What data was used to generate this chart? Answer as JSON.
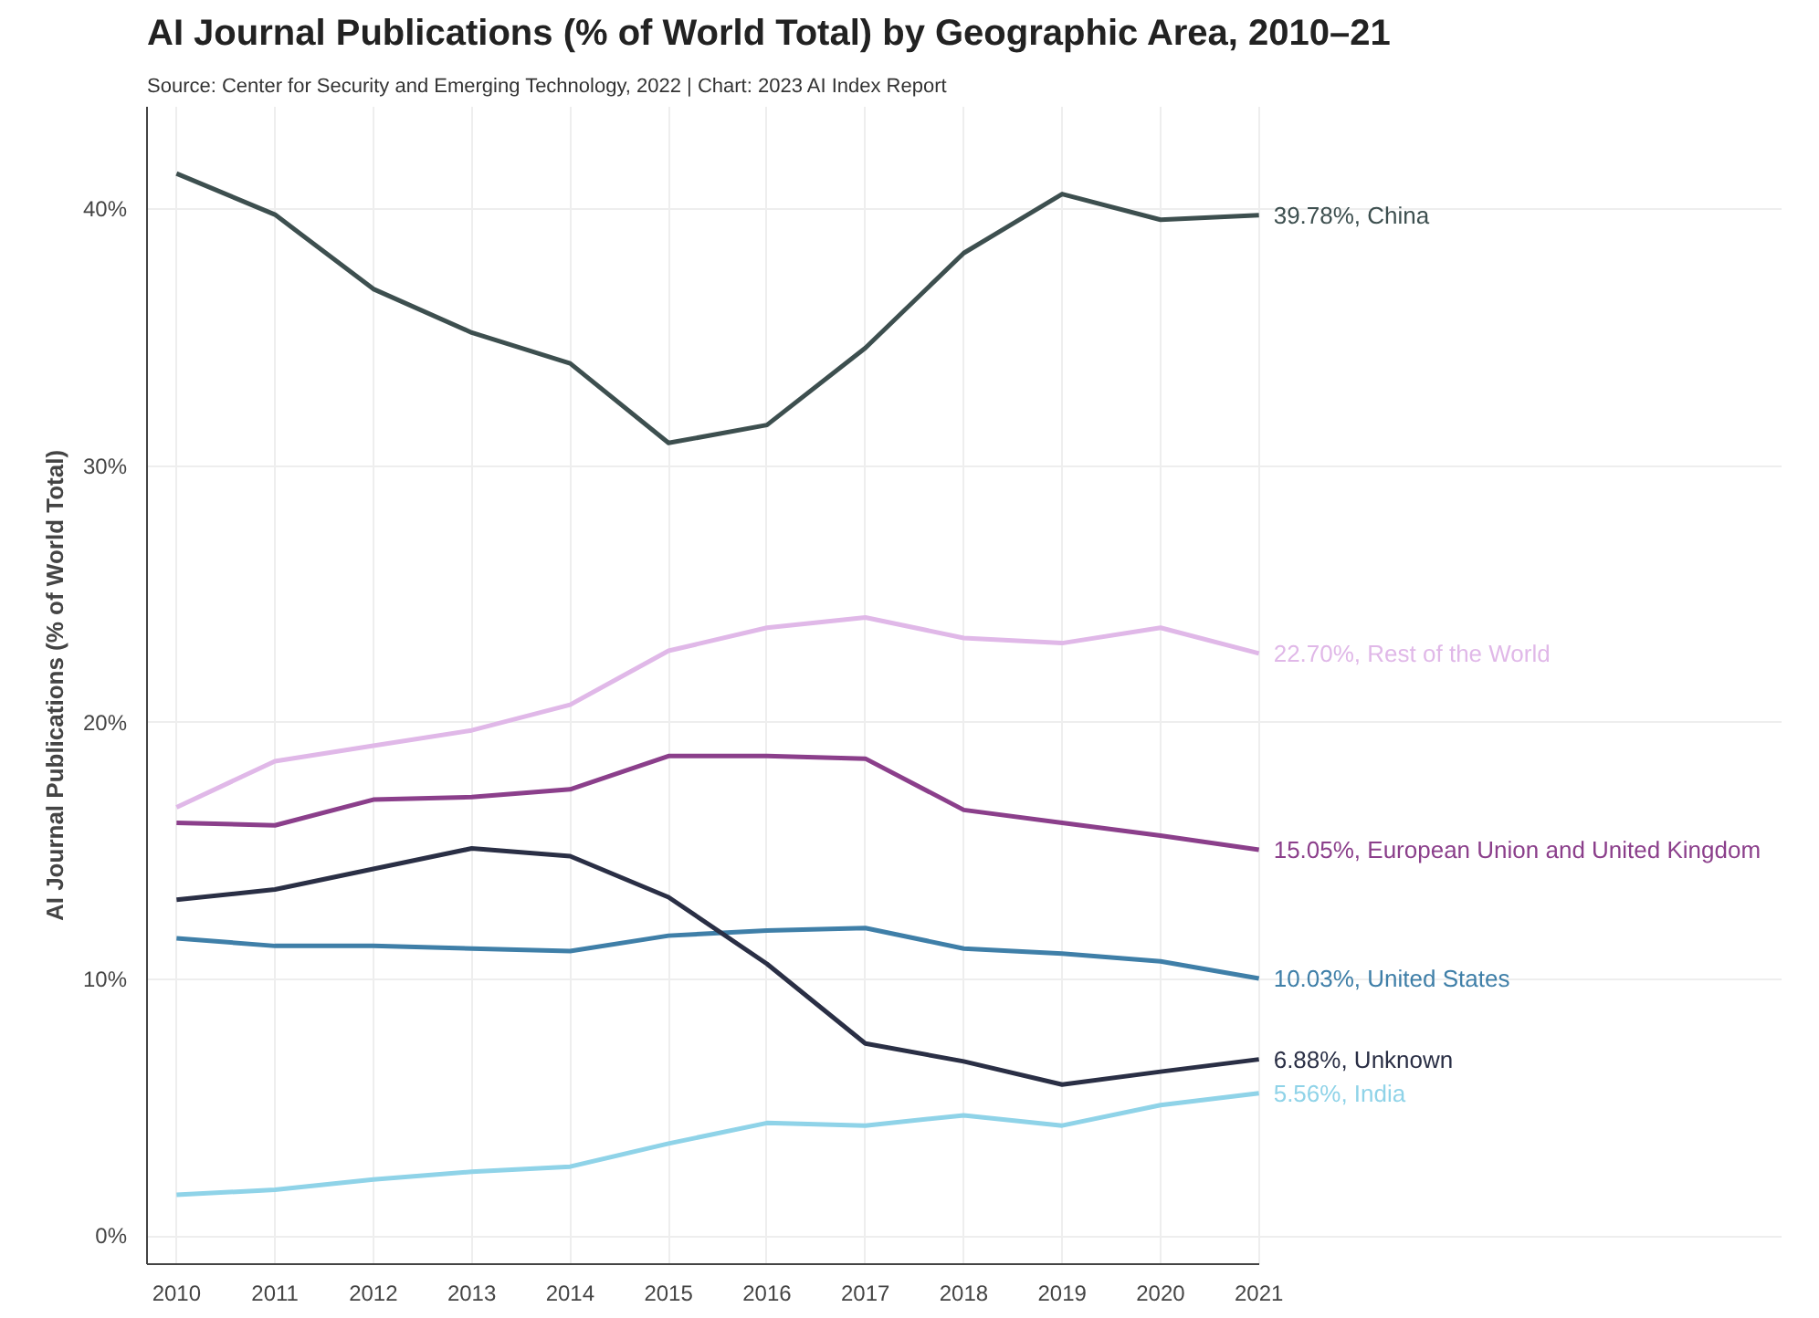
{
  "chart_data": {
    "type": "line",
    "title": "AI Journal Publications (% of World Total) by Geographic Area, 2010–21",
    "subtitle": "Source: Center for Security and Emerging Technology, 2022 | Chart: 2023 AI Index Report",
    "ylabel": "AI Journal Publications (% of World Total)",
    "x": [
      2010,
      2011,
      2012,
      2013,
      2014,
      2015,
      2016,
      2017,
      2018,
      2019,
      2020,
      2021
    ],
    "xlim": [
      2009.7,
      2021
    ],
    "xticks": [
      2010,
      2011,
      2012,
      2013,
      2014,
      2015,
      2016,
      2017,
      2018,
      2019,
      2020,
      2021
    ],
    "ylim": [
      -1.1,
      44
    ],
    "yticks": [
      {
        "value": 0,
        "label": "0%"
      },
      {
        "value": 10,
        "label": "10%"
      },
      {
        "value": 20,
        "label": "20%"
      },
      {
        "value": 30,
        "label": "30%"
      },
      {
        "value": 40,
        "label": "40%"
      }
    ],
    "grid": true,
    "legend": false,
    "marker": "none",
    "line_style": "solid",
    "series": [
      {
        "name": "China",
        "color": "#3d4f4f",
        "values": [
          41.4,
          39.8,
          36.9,
          35.2,
          34.0,
          30.9,
          31.6,
          34.6,
          38.3,
          40.6,
          39.6,
          39.78
        ],
        "value_labels": [
          null,
          null,
          null,
          null,
          null,
          null,
          null,
          null,
          null,
          null,
          null,
          "39.78%,"
        ]
      },
      {
        "name": "Rest of the World",
        "color": "#e0b8e8",
        "values": [
          16.7,
          18.5,
          19.1,
          19.7,
          20.7,
          22.8,
          23.7,
          24.1,
          23.3,
          23.1,
          23.7,
          22.7
        ],
        "value_labels": [
          null,
          null,
          null,
          null,
          null,
          null,
          null,
          null,
          null,
          null,
          null,
          "22.70%,"
        ]
      },
      {
        "name": "European Union and United Kingdom",
        "color": "#8b3f8b",
        "values": [
          16.1,
          16.0,
          17.0,
          17.1,
          17.4,
          18.7,
          18.7,
          18.6,
          16.6,
          16.1,
          15.6,
          15.05
        ],
        "value_labels": [
          null,
          null,
          null,
          null,
          null,
          null,
          null,
          null,
          null,
          null,
          null,
          "15.05%,"
        ]
      },
      {
        "name": "United States",
        "color": "#3f7fa8",
        "values": [
          11.6,
          11.3,
          11.3,
          11.2,
          11.1,
          11.7,
          11.9,
          12.0,
          11.2,
          11.0,
          10.7,
          10.03
        ],
        "value_labels": [
          null,
          null,
          null,
          null,
          null,
          null,
          null,
          null,
          null,
          null,
          null,
          "10.03%,"
        ]
      },
      {
        "name": "Unknown",
        "color": "#2a2f45",
        "values": [
          13.1,
          13.5,
          14.3,
          15.1,
          14.8,
          13.2,
          10.6,
          7.5,
          6.8,
          5.9,
          6.4,
          6.88
        ],
        "value_labels": [
          null,
          null,
          null,
          null,
          null,
          null,
          null,
          null,
          null,
          null,
          null,
          "6.88%,"
        ]
      },
      {
        "name": "India",
        "color": "#8fd3e8",
        "values": [
          1.6,
          1.8,
          2.2,
          2.5,
          2.7,
          3.6,
          4.4,
          4.3,
          4.7,
          4.3,
          5.1,
          5.56
        ],
        "value_labels": [
          null,
          null,
          null,
          null,
          null,
          null,
          null,
          null,
          null,
          null,
          null,
          "5.56%,"
        ]
      }
    ]
  }
}
